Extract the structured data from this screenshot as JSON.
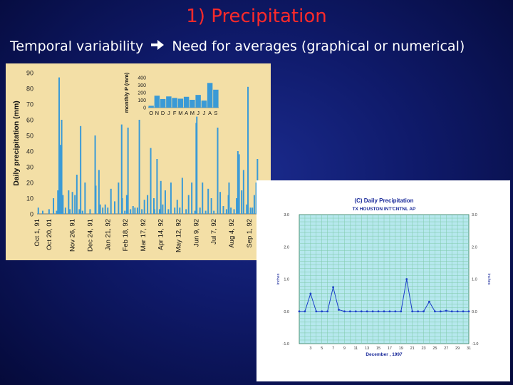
{
  "slide": {
    "title": "1) Precipitation",
    "subtitle_before": "Temporal variability",
    "arrow_icon": "right-arrow-icon",
    "subtitle_after": "Need for averages (graphical or numerical)",
    "title_color": "#ff2a2a",
    "background_color": "#0f1a6a"
  },
  "chart_data": [
    {
      "type": "bar",
      "ylabel": "Daily precipitation (mm)",
      "ylim": [
        0,
        90
      ],
      "yticks": [
        0,
        10,
        20,
        30,
        40,
        50,
        60,
        70,
        80,
        90
      ],
      "xlim": [
        0,
        352
      ],
      "xticks": [
        {
          "label": "Oct 1, 91",
          "day": 0
        },
        {
          "label": "Oct 20, 01",
          "day": 19
        },
        {
          "label": "Nov 26, 91",
          "day": 56
        },
        {
          "label": "Dec 24, 91",
          "day": 84
        },
        {
          "label": "Jan 21, 92",
          "day": 112
        },
        {
          "label": "Feb 18, 92",
          "day": 140
        },
        {
          "label": "Mar 17, 92",
          "day": 168
        },
        {
          "label": "Apr 14, 92",
          "day": 196
        },
        {
          "label": "May 12, 92",
          "day": 224
        },
        {
          "label": "Jun 9, 92",
          "day": 252
        },
        {
          "label": "Jul 7, 92",
          "day": 280
        },
        {
          "label": "Aug 4, 92",
          "day": 308
        },
        {
          "label": "Sep 1, 92",
          "day": 336
        }
      ],
      "bar_color": "#3a9ad6",
      "background_color": "#f3dfa6",
      "days": [
        2,
        9,
        19,
        26,
        31,
        33,
        35,
        36,
        37,
        39,
        41,
        45,
        50,
        52,
        56,
        60,
        63,
        67,
        69,
        72,
        76,
        84,
        92,
        93,
        98,
        100,
        104,
        108,
        112,
        117,
        123,
        129,
        134,
        135,
        139,
        142,
        144,
        148,
        152,
        155,
        159,
        162,
        166,
        170,
        175,
        180,
        185,
        186,
        190,
        194,
        196,
        199,
        203,
        208,
        212,
        218,
        222,
        226,
        230,
        236,
        240,
        245,
        250,
        252,
        253,
        258,
        262,
        267,
        271,
        276,
        280,
        286,
        290,
        295,
        300,
        303,
        304,
        307,
        312,
        316,
        318,
        320,
        324,
        327,
        332,
        334,
        338,
        341,
        344,
        347,
        349
      ],
      "values": [
        4,
        2,
        3,
        10,
        2,
        15,
        87,
        5,
        44,
        60,
        12,
        4,
        15,
        3,
        14,
        12,
        25,
        3,
        56,
        2,
        20,
        3,
        50,
        18,
        28,
        6,
        4,
        6,
        4,
        16,
        8,
        20,
        57,
        10,
        2,
        12,
        55,
        3,
        5,
        4,
        4,
        60,
        3,
        9,
        12,
        42,
        10,
        3,
        35,
        3,
        21,
        6,
        15,
        3,
        20,
        4,
        9,
        4,
        23,
        3,
        12,
        20,
        2,
        58,
        62,
        4,
        20,
        2,
        16,
        10,
        2,
        55,
        14,
        5,
        3,
        12,
        20,
        4,
        3,
        10,
        40,
        38,
        15,
        28,
        6,
        81,
        4,
        4,
        12,
        20,
        35
      ],
      "inset": {
        "type": "bar",
        "ylabel": "monthly P (mm)",
        "yticks": [
          0,
          100,
          200,
          300,
          400
        ],
        "ylim": [
          0,
          400
        ],
        "categories": [
          "O",
          "N",
          "D",
          "J",
          "F",
          "M",
          "A",
          "M",
          "J",
          "J",
          "A",
          "S"
        ],
        "values": [
          25,
          160,
          115,
          150,
          130,
          120,
          145,
          105,
          170,
          95,
          330,
          240
        ],
        "bar_color": "#3a9ad6"
      }
    },
    {
      "type": "line",
      "title": "(C) Daily Precipitation",
      "subtitle": "TX HOUSTON INT'CNTNL AP",
      "xlabel": "December , 1997",
      "ylabel_left": "inches",
      "ylabel_right": "inches",
      "ylim": [
        -1.0,
        3.0
      ],
      "yticks_left": [
        "-1.0",
        "0.0",
        "1.0",
        "2.0",
        "3.0"
      ],
      "yticks_right": [
        "-1.0",
        "0.0",
        "1.0",
        "2.0",
        "3.0"
      ],
      "yticks_values": [
        -1,
        0,
        1,
        2,
        3
      ],
      "xlim": [
        1,
        31
      ],
      "xticks": [
        "3",
        "5",
        "7",
        "9",
        "11",
        "13",
        "15",
        "17",
        "19",
        "21",
        "23",
        "25",
        "27",
        "29",
        "31"
      ],
      "grid": true,
      "line_color": "#1a3ec8",
      "grid_color": "#7fcaa8",
      "background_color": "#ffffff",
      "x": [
        1,
        2,
        3,
        4,
        5,
        6,
        7,
        8,
        9,
        10,
        11,
        12,
        13,
        14,
        15,
        16,
        17,
        18,
        19,
        20,
        21,
        22,
        23,
        24,
        25,
        26,
        27,
        28,
        29,
        30,
        31
      ],
      "y": [
        0.0,
        0.0,
        0.55,
        0.0,
        0.0,
        0.0,
        0.75,
        0.05,
        0.0,
        0.0,
        0.0,
        0.0,
        0.0,
        0.0,
        0.0,
        0.0,
        0.0,
        0.0,
        0.0,
        1.0,
        0.0,
        0.0,
        0.0,
        0.3,
        0.0,
        0.0,
        0.02,
        0.0,
        0.0,
        0.0,
        0.0
      ]
    }
  ]
}
